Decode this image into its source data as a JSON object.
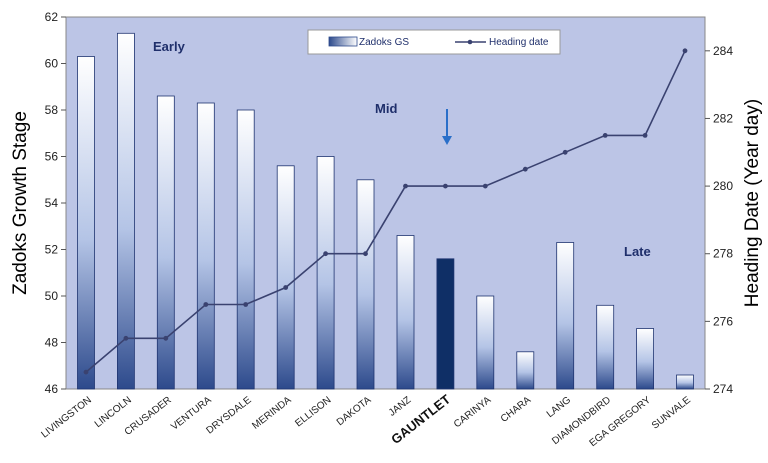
{
  "chart_data": {
    "type": "bar",
    "categories": [
      "LIVINGSTON",
      "LINCOLN",
      "CRUSADER",
      "VENTURA",
      "DRYSDALE",
      "MERINDA",
      "ELLISON",
      "DAKOTA",
      "JANZ",
      "GAUNTLET",
      "CARINYA",
      "CHARA",
      "LANG",
      "DIAMONDBIRD",
      "EGA GREGORY",
      "SUNVALE"
    ],
    "highlight_category": "GAUNTLET",
    "series": [
      {
        "name": "Zadoks GS",
        "type": "bar",
        "axis": "left",
        "values": [
          60.3,
          61.3,
          58.6,
          58.3,
          58.0,
          55.6,
          56.0,
          55.0,
          52.6,
          51.6,
          50.0,
          47.6,
          52.3,
          49.6,
          48.6,
          46.6
        ]
      },
      {
        "name": "Heading date",
        "type": "line",
        "axis": "right",
        "values": [
          274.5,
          275.5,
          275.5,
          276.5,
          276.5,
          277.0,
          278.0,
          278.0,
          280.0,
          280.0,
          280.0,
          280.5,
          281.0,
          281.5,
          281.5,
          284.0
        ]
      }
    ],
    "ylabel": "Zadoks Growth Stage",
    "ylim": [
      46,
      62
    ],
    "yticks": [
      "46",
      "48",
      "50",
      "52",
      "54",
      "56",
      "58",
      "60",
      "62"
    ],
    "y2label": "Heading Date (Year day)",
    "y2lim": [
      274,
      285
    ],
    "y2ticks": [
      "274",
      "276",
      "278",
      "280",
      "282",
      "284"
    ],
    "annotations": [
      "Early",
      "Mid",
      "Late"
    ],
    "legend_position": "top-center",
    "colors": {
      "plot_bg": "#bcc5e6",
      "bar_dark": "#2d4a8c",
      "bar_light": "#ffffff",
      "highlight": "#0f2f66",
      "line": "#3a4270",
      "arrow": "#2a6fc9"
    }
  }
}
